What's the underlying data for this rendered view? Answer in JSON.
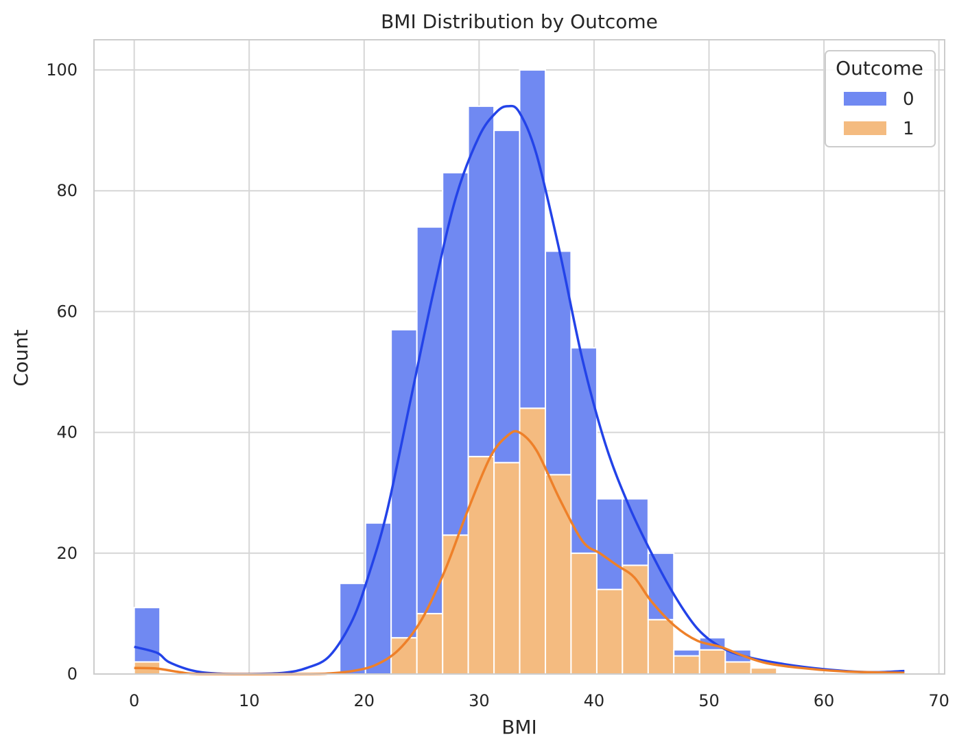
{
  "chart_data": {
    "type": "bar",
    "stacked": true,
    "title": "BMI Distribution by Outcome",
    "xlabel": "BMI",
    "ylabel": "Count",
    "xlim": [
      -3.5,
      70.5
    ],
    "ylim": [
      0,
      105
    ],
    "xticks": [
      0,
      10,
      20,
      30,
      40,
      50,
      60,
      70
    ],
    "yticks": [
      0,
      20,
      40,
      60,
      80,
      100
    ],
    "grid": true,
    "bin_edges": [
      0,
      2.24,
      4.47,
      6.71,
      8.94,
      11.18,
      13.41,
      15.65,
      17.88,
      20.12,
      22.35,
      24.59,
      26.83,
      29.06,
      31.3,
      33.53,
      35.77,
      38.0,
      40.24,
      42.47,
      44.71,
      46.94,
      49.18,
      51.42,
      53.65,
      55.89,
      58.12,
      60.36,
      62.59,
      64.83,
      67.1
    ],
    "series": [
      {
        "name": "0",
        "color": "#7089f2",
        "line_color": "#2343e8",
        "values": [
          9,
          0,
          0,
          0,
          0,
          0,
          0,
          0,
          15,
          25,
          51,
          64,
          60,
          58,
          55,
          56,
          37,
          34,
          15,
          11,
          11,
          1,
          2,
          2,
          0,
          0,
          0,
          0,
          0,
          0
        ],
        "kde": [
          [
            0,
            4.5
          ],
          [
            2,
            3.5
          ],
          [
            3,
            2
          ],
          [
            5,
            0.6
          ],
          [
            7,
            0.1
          ],
          [
            10,
            0
          ],
          [
            13,
            0.2
          ],
          [
            15,
            1
          ],
          [
            17,
            3
          ],
          [
            19,
            9
          ],
          [
            20.5,
            17
          ],
          [
            22,
            27
          ],
          [
            24,
            45
          ],
          [
            26,
            63
          ],
          [
            28,
            79
          ],
          [
            30,
            89
          ],
          [
            31.5,
            93
          ],
          [
            32.5,
            94
          ],
          [
            33.5,
            93
          ],
          [
            35,
            86
          ],
          [
            37,
            70
          ],
          [
            39,
            52
          ],
          [
            41,
            38
          ],
          [
            43,
            28
          ],
          [
            45,
            20
          ],
          [
            47,
            13
          ],
          [
            49,
            7.5
          ],
          [
            51,
            4.5
          ],
          [
            53,
            3
          ],
          [
            56,
            1.8
          ],
          [
            60,
            0.8
          ],
          [
            64,
            0.3
          ],
          [
            67,
            0.5
          ]
        ]
      },
      {
        "name": "1",
        "color": "#f4bb80",
        "line_color": "#ee8029",
        "values": [
          2,
          0,
          0,
          0,
          0,
          0,
          0,
          0,
          0,
          0,
          6,
          10,
          23,
          36,
          35,
          44,
          33,
          20,
          14,
          18,
          9,
          3,
          4,
          2,
          1,
          0,
          0,
          0,
          0,
          0
        ],
        "kde": [
          [
            0,
            1
          ],
          [
            2,
            0.9
          ],
          [
            4,
            0.3
          ],
          [
            6,
            0
          ],
          [
            15,
            0
          ],
          [
            17,
            0.1
          ],
          [
            19,
            0.5
          ],
          [
            21,
            1.5
          ],
          [
            23,
            4
          ],
          [
            25,
            9
          ],
          [
            27,
            17
          ],
          [
            29,
            27
          ],
          [
            31,
            36
          ],
          [
            32.5,
            39.5
          ],
          [
            33.5,
            40
          ],
          [
            35,
            37
          ],
          [
            37,
            29
          ],
          [
            39,
            22
          ],
          [
            40.5,
            20
          ],
          [
            42,
            18
          ],
          [
            43.5,
            16
          ],
          [
            45,
            12
          ],
          [
            47,
            8
          ],
          [
            49,
            5.5
          ],
          [
            51,
            4.5
          ],
          [
            53,
            3
          ],
          [
            55,
            1.8
          ],
          [
            58,
            1
          ],
          [
            62,
            0.4
          ],
          [
            67,
            0.2
          ]
        ]
      }
    ],
    "legend": {
      "title": "Outcome",
      "position": "top-right",
      "entries": [
        "0",
        "1"
      ]
    }
  }
}
